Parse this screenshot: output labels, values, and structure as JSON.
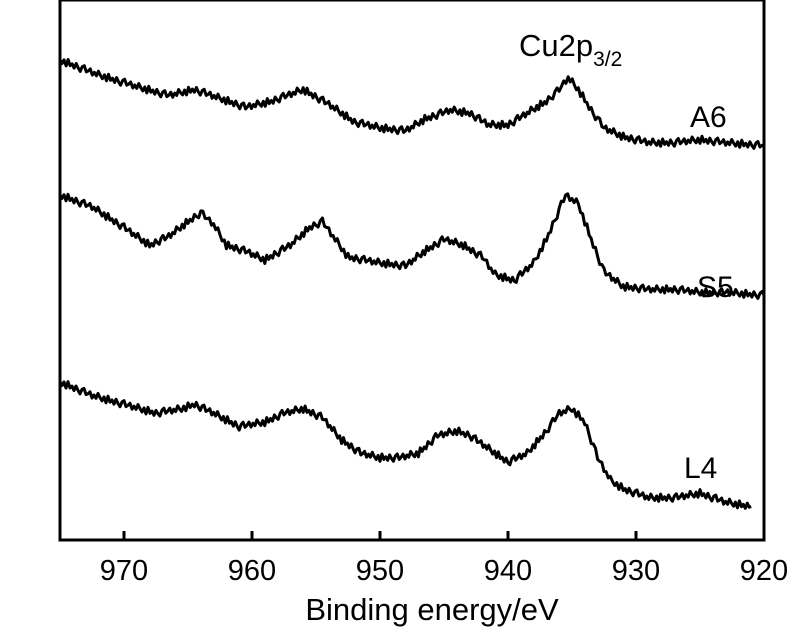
{
  "chart_data": {
    "type": "line",
    "title": "Cu2p",
    "title_subscript": "3/2",
    "xlabel": "Binding energy/eV",
    "ylabel": "",
    "xlim": [
      975,
      920
    ],
    "x_reversed": true,
    "y_ticks_shown": false,
    "xticks": [
      970,
      960,
      950,
      940,
      930,
      920
    ],
    "tick_labels": [
      "970",
      "960",
      "950",
      "940",
      "930",
      "920"
    ],
    "y_range": [
      0,
      100
    ],
    "series": [
      {
        "name": "A6",
        "x_range": [
          975,
          920
        ],
        "x": [
          975,
          972,
          969,
          966.5,
          964.5,
          962.5,
          960.5,
          958.5,
          956,
          954,
          952,
          950,
          948,
          946.5,
          944.5,
          943,
          941.5,
          940,
          938.5,
          937,
          936,
          935.3,
          934.5,
          933.5,
          932.5,
          931,
          929,
          927,
          925,
          923,
          920
        ],
        "values": [
          92,
          87,
          83,
          80,
          82,
          79,
          76,
          78,
          82,
          77,
          71,
          69,
          68,
          72,
          75,
          74,
          70,
          70,
          74,
          78,
          82,
          86,
          82,
          75,
          69,
          66,
          64,
          64,
          65,
          64,
          63
        ]
      },
      {
        "name": "S5",
        "x_range": [
          975,
          920
        ],
        "x": [
          975,
          972.5,
          970,
          968,
          966.5,
          965,
          964,
          963,
          962,
          960.5,
          959,
          957,
          955.5,
          954.5,
          953.5,
          952.5,
          950,
          948,
          946.5,
          945,
          943.5,
          942,
          941,
          939.5,
          938,
          937,
          936,
          935.5,
          934.5,
          933.5,
          932.5,
          931,
          929,
          927,
          925,
          923,
          920
        ],
        "values": [
          67,
          63,
          56,
          50,
          53,
          58,
          61,
          57,
          50,
          48,
          45,
          50,
          56,
          58,
          52,
          46,
          44,
          43,
          48,
          52,
          50,
          46,
          40,
          38,
          44,
          52,
          62,
          67,
          64,
          52,
          41,
          36,
          35,
          35,
          34,
          34,
          33
        ]
      },
      {
        "name": "L4",
        "x_range": [
          975,
          921
        ],
        "x": [
          975,
          972.5,
          970,
          967.5,
          965.5,
          964.5,
          963,
          961,
          959,
          957.5,
          956,
          954.5,
          953,
          951.5,
          950,
          948.5,
          947,
          945.5,
          944,
          943,
          941.5,
          940,
          938.5,
          937,
          936,
          935,
          934,
          933,
          932,
          931,
          929,
          927,
          925,
          923,
          921
        ],
        "values": [
          24,
          21,
          19,
          17,
          18,
          19,
          17,
          14,
          15,
          17,
          18,
          16,
          11,
          8,
          7,
          7,
          8,
          12,
          13,
          12,
          9,
          6,
          8,
          13,
          17,
          18,
          15,
          7,
          2,
          0,
          -2,
          -2,
          -1,
          -3,
          -4
        ]
      }
    ]
  }
}
